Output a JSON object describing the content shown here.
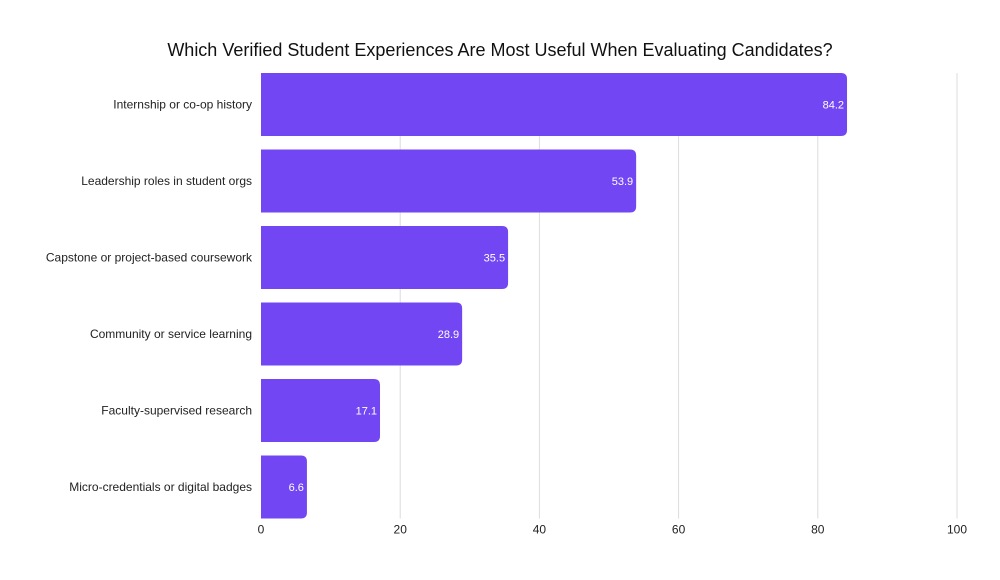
{
  "chart_data": {
    "type": "bar",
    "orientation": "horizontal",
    "title": "Which Verified Student Experiences Are Most Useful When Evaluating Candidates?",
    "categories": [
      "Internship or co-op history",
      "Leadership roles in student orgs",
      "Capstone or project-based coursework",
      "Community or service learning",
      "Faculty-supervised research",
      "Micro-credentials or digital badges"
    ],
    "values": [
      84.2,
      53.9,
      35.5,
      28.9,
      17.1,
      6.6
    ],
    "value_labels": [
      "84.2",
      "53.9",
      "35.5",
      "28.9",
      "17.1",
      "6.6"
    ],
    "xlim": [
      0,
      100
    ],
    "xticks": [
      0,
      20,
      40,
      60,
      80,
      100
    ],
    "xlabel": "",
    "ylabel": "",
    "grid": true,
    "legend": "none",
    "bar_color": "#7346F3"
  }
}
